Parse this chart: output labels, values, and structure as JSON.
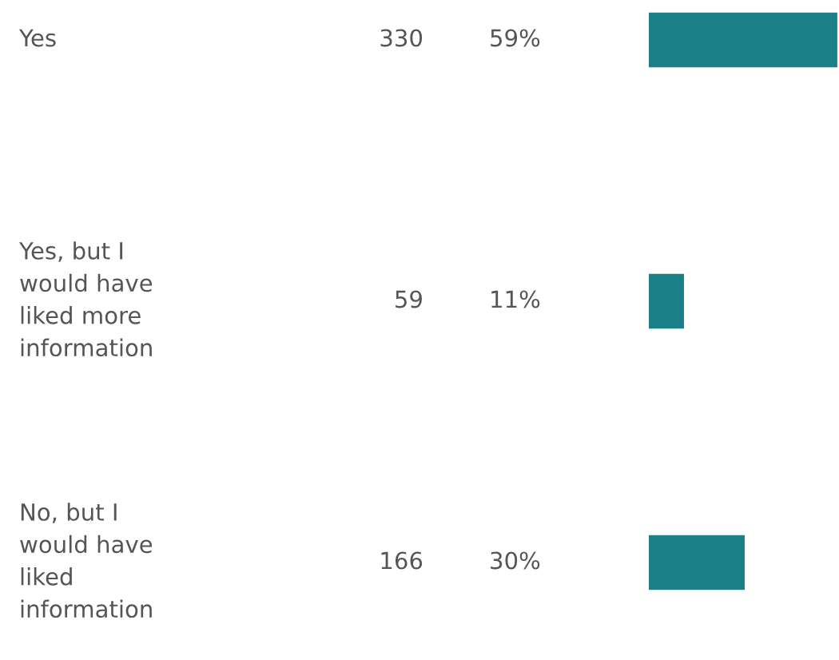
{
  "chart_data": {
    "type": "bar",
    "orientation": "horizontal",
    "categories": [
      "Yes",
      "Yes, but I\nwould have\nliked more\ninformation",
      "No, but I\nwould have\nliked\ninformation"
    ],
    "values": [
      59,
      11,
      30
    ],
    "value_labels": [
      "59%",
      "11%",
      "30%"
    ],
    "annotations": [
      "330",
      "59",
      "166"
    ],
    "color": "#1b7f87"
  }
}
